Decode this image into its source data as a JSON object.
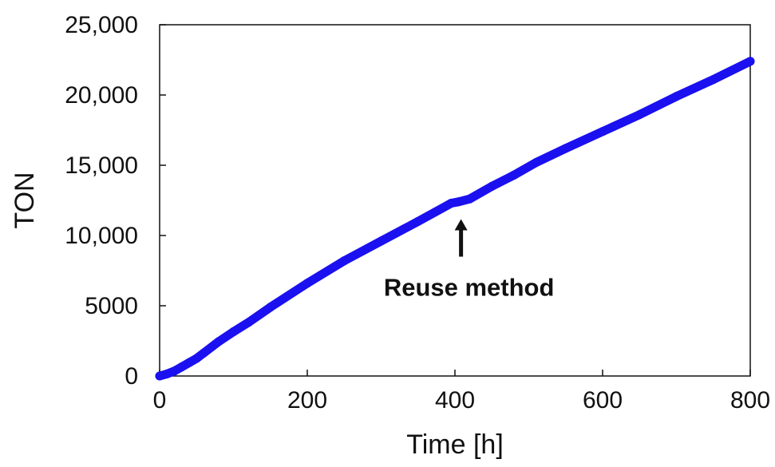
{
  "chart_data": {
    "type": "line",
    "title": "",
    "xlabel": "Time [h]",
    "ylabel": "TON",
    "xlim": [
      0,
      800
    ],
    "ylim": [
      0,
      25000
    ],
    "x_ticks": [
      0,
      200,
      400,
      600,
      800
    ],
    "x_tick_labels": [
      "0",
      "200",
      "400",
      "600",
      "800"
    ],
    "y_ticks": [
      0,
      5000,
      10000,
      15000,
      20000,
      25000
    ],
    "y_tick_labels": [
      "0",
      "5000",
      "10,000",
      "15,000",
      "20,000",
      "25,000"
    ],
    "grid": false,
    "legend": "none",
    "series": [
      {
        "color": "#1a10f0",
        "x": [
          0,
          10,
          20,
          30,
          40,
          50,
          60,
          80,
          100,
          120,
          150,
          200,
          250,
          300,
          350,
          395,
          405,
          420,
          450,
          480,
          510,
          550,
          600,
          650,
          700,
          750,
          800
        ],
        "y": [
          0,
          150,
          350,
          650,
          950,
          1250,
          1650,
          2450,
          3150,
          3800,
          4900,
          6600,
          8200,
          9600,
          11000,
          12300,
          12400,
          12600,
          13500,
          14300,
          15200,
          16200,
          17400,
          18600,
          19900,
          21100,
          22400
        ]
      }
    ],
    "annotations": [
      {
        "text": "Reuse method",
        "x": 405,
        "y": 12300
      }
    ]
  }
}
